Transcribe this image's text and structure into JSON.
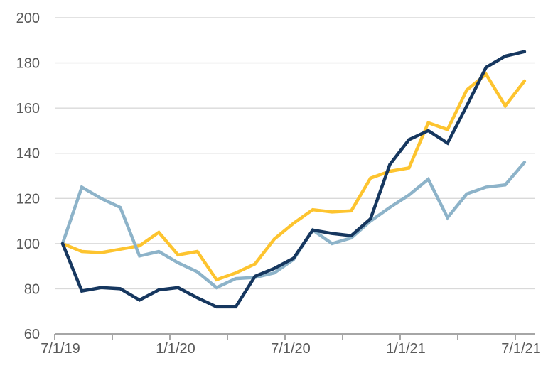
{
  "chart_data": {
    "type": "line",
    "title": "",
    "xlabel": "",
    "ylabel": "",
    "x_unit": "monthly",
    "x_range_labels": [
      "7/1/19",
      "7/1/21"
    ],
    "x_tick_labels": [
      "7/1/19",
      "1/1/20",
      "7/1/20",
      "1/1/21",
      "7/1/21"
    ],
    "x_labeled_tick_months": [
      0,
      6,
      12,
      18,
      24
    ],
    "x_minor_tick_months": [
      0,
      3,
      6,
      9,
      12,
      15,
      18,
      21,
      24
    ],
    "ylim": [
      60,
      200
    ],
    "y_ticks": [
      60,
      80,
      100,
      120,
      140,
      160,
      180,
      200
    ],
    "grid": "horizontal",
    "legend_position": "none",
    "series": [
      {
        "name": "gold-line",
        "color": "#FDC42F",
        "values": [
          100,
          96.5,
          96,
          97.5,
          99,
          105,
          95,
          96.5,
          84,
          87,
          91,
          102,
          109,
          115,
          114,
          114.5,
          129,
          132,
          133.5,
          153.5,
          150.5,
          168,
          175,
          161,
          172
        ]
      },
      {
        "name": "light-blue-line",
        "color": "#8DB3C9",
        "values": [
          100,
          125,
          120,
          116,
          94.5,
          96.5,
          91.5,
          87.5,
          80.5,
          84.5,
          85,
          87,
          93,
          106,
          100,
          102.5,
          110,
          116,
          121.5,
          128.5,
          111.5,
          122,
          125,
          126,
          136
        ]
      },
      {
        "name": "dark-navy-line",
        "color": "#16375F",
        "values": [
          100,
          79,
          80.5,
          80,
          75,
          79.5,
          80.5,
          76,
          72,
          72,
          85.5,
          89,
          93.5,
          106,
          104.5,
          103.5,
          111,
          135,
          146,
          150,
          144.5,
          161,
          178,
          183,
          185
        ]
      }
    ]
  },
  "style": {
    "axis_color": "#A6A6A6",
    "gridline_color": "#D9D9D9",
    "label_color": "#595959",
    "background": "#FFFFFF"
  }
}
